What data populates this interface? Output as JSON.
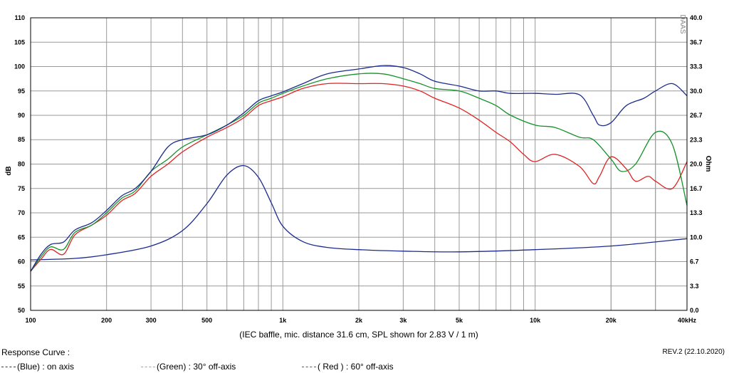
{
  "chart_data": {
    "type": "line",
    "caption": "(IEC baffle, mic. distance 31.6 cm, SPL shown for 2.83 V / 1 m)",
    "ylabel_left": "dB",
    "ylabel_right": "Ohm",
    "x_scale": "log",
    "xlim": [
      100,
      40000
    ],
    "ylim_left": [
      50,
      110
    ],
    "ylim_right": [
      0,
      40
    ],
    "x_ticks": [
      {
        "value": 100,
        "label": "100"
      },
      {
        "value": 200,
        "label": "200"
      },
      {
        "value": 300,
        "label": "300"
      },
      {
        "value": 500,
        "label": "500"
      },
      {
        "value": 1000,
        "label": "1k"
      },
      {
        "value": 2000,
        "label": "2k"
      },
      {
        "value": 3000,
        "label": "3k"
      },
      {
        "value": 5000,
        "label": "5k"
      },
      {
        "value": 10000,
        "label": "10k"
      },
      {
        "value": 20000,
        "label": "20k"
      },
      {
        "value": 40000,
        "label": "40kHz"
      }
    ],
    "y_left_ticks": [
      "50",
      "55",
      "60",
      "65",
      "70",
      "75",
      "80",
      "85",
      "90",
      "95",
      "100",
      "105",
      "110"
    ],
    "y_right_ticks": [
      "0.0",
      "3.3",
      "6.7",
      "10.0",
      "13.3",
      "16.7",
      "20.0",
      "23.3",
      "26.7",
      "30.0",
      "33.3",
      "36.7",
      "40.0"
    ],
    "grid": true,
    "series": [
      {
        "key": "blue",
        "axis": "left",
        "color": "#1c2b8f",
        "x": [
          100,
          110,
          120,
          135,
          150,
          175,
          200,
          230,
          260,
          300,
          350,
          400,
          500,
          600,
          700,
          800,
          900,
          1000,
          1200,
          1500,
          2000,
          2500,
          3000,
          3500,
          4000,
          5000,
          6000,
          7000,
          8000,
          10000,
          12000,
          15000,
          17000,
          18000,
          20000,
          23000,
          27000,
          30000,
          35000,
          40000
        ],
        "y": [
          58,
          61.5,
          63.5,
          64,
          66.5,
          68,
          70.5,
          73.5,
          75,
          78.5,
          83.5,
          85,
          86,
          88,
          90.5,
          93,
          94,
          94.8,
          96.5,
          98.5,
          99.5,
          100.2,
          99.8,
          98.5,
          97,
          96,
          95,
          95,
          94.5,
          94.5,
          94.3,
          94.2,
          90,
          88,
          88.5,
          92,
          93.5,
          95,
          96.5,
          94
        ]
      },
      {
        "key": "blue_impedance",
        "axis": "right",
        "color": "#1c2b8f",
        "x": [
          100,
          150,
          200,
          300,
          400,
          500,
          600,
          700,
          800,
          900,
          1000,
          1200,
          1500,
          2000,
          3000,
          5000,
          10000,
          20000,
          40000
        ],
        "y": [
          6.9,
          7.1,
          7.6,
          8.8,
          10.9,
          14.6,
          18.5,
          19.8,
          18.2,
          14.7,
          11.5,
          9.4,
          8.6,
          8.3,
          8.1,
          8.0,
          8.3,
          8.8,
          9.8
        ]
      },
      {
        "key": "green",
        "axis": "left",
        "color": "#16922b",
        "x": [
          100,
          110,
          120,
          135,
          150,
          175,
          200,
          230,
          260,
          300,
          350,
          400,
          500,
          600,
          700,
          800,
          900,
          1000,
          1200,
          1500,
          2000,
          2500,
          3000,
          3500,
          4000,
          5000,
          6000,
          7000,
          8000,
          10000,
          12000,
          15000,
          17000,
          20000,
          22000,
          25000,
          30000,
          35000,
          40000
        ],
        "y": [
          58,
          61,
          63,
          62.5,
          66,
          67.5,
          70,
          73,
          74.5,
          78.5,
          81,
          83.5,
          86,
          88,
          90,
          92.5,
          93.5,
          94.5,
          96,
          97.5,
          98.5,
          98.5,
          97.5,
          96.5,
          95.5,
          95,
          93.5,
          92,
          90,
          88,
          87.5,
          85.5,
          85,
          81,
          78.5,
          80,
          86.5,
          84,
          71.5
        ]
      },
      {
        "key": "red",
        "axis": "left",
        "color": "#e02222",
        "x": [
          100,
          110,
          120,
          135,
          150,
          175,
          200,
          230,
          260,
          300,
          350,
          400,
          500,
          600,
          700,
          800,
          900,
          1000,
          1200,
          1500,
          2000,
          2500,
          3000,
          3500,
          4000,
          5000,
          6000,
          7000,
          8000,
          9000,
          10000,
          12000,
          15000,
          17000,
          18000,
          20000,
          23000,
          25000,
          28000,
          30000,
          35000,
          40000
        ],
        "y": [
          58,
          60.5,
          62.5,
          61.5,
          65.5,
          67.5,
          69.5,
          72.5,
          74,
          77.5,
          80,
          82.5,
          85.5,
          87.5,
          89.5,
          92,
          93,
          93.8,
          95.5,
          96.5,
          96.5,
          96.5,
          96,
          95,
          93.5,
          91.5,
          89,
          86.5,
          84.5,
          82,
          80.5,
          82,
          79.5,
          76,
          77.5,
          81.5,
          79,
          76.5,
          77.5,
          76.5,
          75,
          80.5
        ]
      }
    ]
  },
  "legend": {
    "title": "Response Curve :",
    "items": [
      {
        "label": "(Blue)  : on axis",
        "color": "#1c2b8f"
      },
      {
        "label": "(Green) : 30° off-axis",
        "color": "#8bc34a"
      },
      {
        "label": "( Red ) : 60° off-axis",
        "color": "#e02222"
      }
    ]
  },
  "revision": "REV.2 (22.10.2020)",
  "brand_mark": "DAAS"
}
